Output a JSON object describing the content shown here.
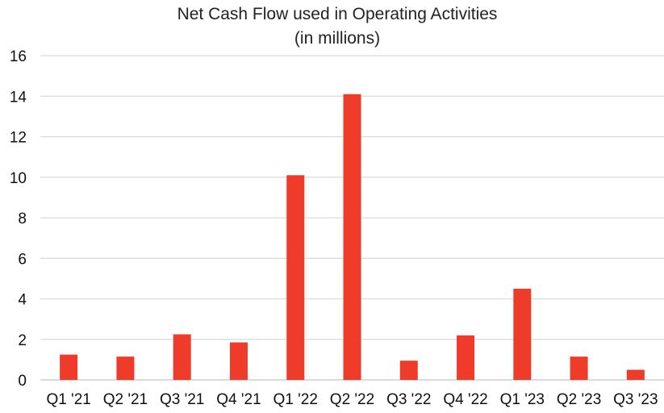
{
  "chart_data": {
    "type": "bar",
    "title": "Net Cash Flow used in Operating Activities",
    "subtitle": "(in millions)",
    "categories": [
      "Q1 '21",
      "Q2 '21",
      "Q3 '21",
      "Q4 '21",
      "Q1 '22",
      "Q2 '22",
      "Q3 '22",
      "Q4 '22",
      "Q1 '23",
      "Q2 '23",
      "Q3 '23"
    ],
    "values": [
      1.25,
      1.15,
      2.25,
      1.85,
      10.1,
      14.1,
      0.95,
      2.2,
      4.5,
      1.15,
      0.5
    ],
    "ylim": [
      0,
      16
    ],
    "yticks": [
      0,
      2,
      4,
      6,
      8,
      10,
      12,
      14,
      16
    ],
    "xlabel": "",
    "ylabel": "",
    "grid": true,
    "legend": "none",
    "bar_color": "#ee3b2a"
  }
}
